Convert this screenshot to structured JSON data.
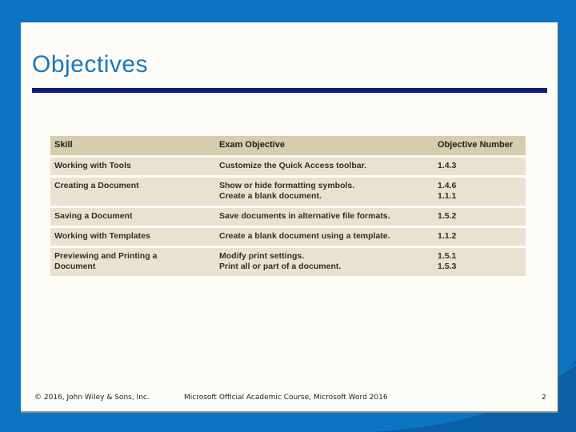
{
  "slide": {
    "title": "Objectives",
    "table": {
      "headers": [
        "Skill",
        "Exam Objective",
        "Objective Number"
      ],
      "rows": [
        {
          "skill": "Working with Tools",
          "objectives": [
            "Customize the Quick Access toolbar."
          ],
          "numbers": [
            "1.4.3"
          ]
        },
        {
          "skill": "Creating a Document",
          "objectives": [
            "Show or hide formatting symbols.",
            "Create a blank document."
          ],
          "numbers": [
            "1.4.6",
            "1.1.1"
          ]
        },
        {
          "skill": "Saving a Document",
          "objectives": [
            "Save documents in alternative file formats."
          ],
          "numbers": [
            "1.5.2"
          ]
        },
        {
          "skill": "Working with Templates",
          "objectives": [
            "Create a blank document using a template."
          ],
          "numbers": [
            "1.1.2"
          ]
        },
        {
          "skill": "Previewing and Printing a Document",
          "objectives": [
            "Modify print settings.",
            "Print all or part of a document."
          ],
          "numbers": [
            "1.5.1",
            "1.5.3"
          ]
        }
      ]
    },
    "footer": {
      "copyright": "© 2016, John Wiley & Sons, Inc.",
      "course": "Microsoft Official Academic Course, Microsoft Word 2016",
      "page_number": "2"
    },
    "colors": {
      "frame_blue": "#0d74c4",
      "frame_blue_dark": "#0a5fa6",
      "title_blue": "#1b77bd",
      "rule_navy": "#0e1d7a",
      "table_header_bg": "#d6ccae",
      "table_body_bg": "#e9e2d1",
      "table_text": "#332e22"
    }
  }
}
